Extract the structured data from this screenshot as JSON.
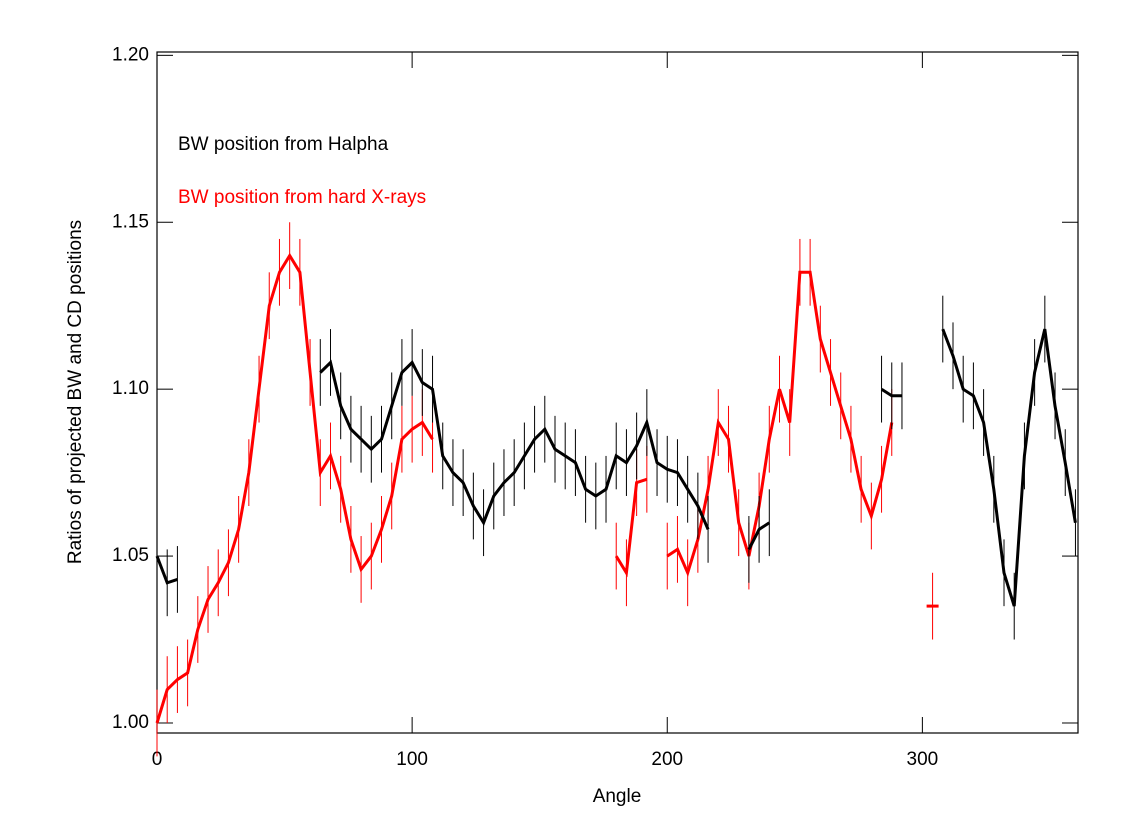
{
  "chart_data": {
    "type": "errorbar-line",
    "x_label": "Angle",
    "y_label": "Ratios of projected BW and CD positions",
    "xlim": [
      0,
      361
    ],
    "ylim": [
      0.997,
      1.201
    ],
    "xticks": [
      0,
      100,
      200,
      300
    ],
    "yticks": [
      {
        "value": 1.0,
        "label": "1.00"
      },
      {
        "value": 1.05,
        "label": "1.05"
      },
      {
        "value": 1.1,
        "label": "1.10"
      },
      {
        "value": 1.15,
        "label": "1.15"
      },
      {
        "value": 1.2,
        "label": "1.20"
      }
    ],
    "x": [
      0,
      4,
      8,
      12,
      16,
      20,
      24,
      28,
      32,
      36,
      40,
      44,
      48,
      52,
      56,
      60,
      64,
      68,
      72,
      76,
      80,
      84,
      88,
      92,
      96,
      100,
      104,
      108,
      112,
      116,
      120,
      124,
      128,
      132,
      136,
      140,
      144,
      148,
      152,
      156,
      160,
      164,
      168,
      172,
      176,
      180,
      184,
      188,
      192,
      196,
      200,
      204,
      208,
      212,
      216,
      220,
      224,
      228,
      232,
      236,
      240,
      244,
      248,
      252,
      256,
      260,
      264,
      268,
      272,
      276,
      280,
      284,
      288,
      292,
      296,
      300,
      304,
      308,
      312,
      316,
      320,
      324,
      328,
      332,
      336,
      340,
      344,
      348,
      352,
      356,
      360
    ],
    "series": [
      {
        "name": "BW position from Halpha",
        "color": "#000000",
        "error": 0.01,
        "values": [
          1.05,
          1.042,
          1.043,
          null,
          null,
          null,
          null,
          null,
          null,
          null,
          null,
          null,
          null,
          null,
          null,
          null,
          1.105,
          1.108,
          1.095,
          1.088,
          1.085,
          1.082,
          1.085,
          1.095,
          1.105,
          1.108,
          1.102,
          1.1,
          1.08,
          1.075,
          1.072,
          1.065,
          1.06,
          1.068,
          1.072,
          1.075,
          1.08,
          1.085,
          1.088,
          1.082,
          1.08,
          1.078,
          1.07,
          1.068,
          1.07,
          1.08,
          1.078,
          1.083,
          1.09,
          1.078,
          1.076,
          1.075,
          1.07,
          1.065,
          1.058,
          null,
          null,
          null,
          1.052,
          1.058,
          1.06,
          null,
          null,
          null,
          null,
          null,
          null,
          null,
          null,
          null,
          null,
          1.1,
          1.098,
          1.098,
          null,
          null,
          null,
          1.118,
          1.11,
          1.1,
          1.098,
          1.09,
          1.07,
          1.045,
          1.035,
          1.08,
          1.105,
          1.118,
          1.095,
          1.078,
          1.06
        ]
      },
      {
        "name": "BW position from hard X-rays",
        "color": "#ff0000",
        "error": 0.01,
        "values": [
          1.0,
          1.01,
          1.013,
          1.015,
          1.028,
          1.037,
          1.042,
          1.048,
          1.058,
          1.075,
          1.1,
          1.125,
          1.135,
          1.14,
          1.135,
          1.105,
          1.075,
          1.08,
          1.07,
          1.055,
          1.046,
          1.05,
          1.058,
          1.068,
          1.085,
          1.088,
          1.09,
          1.085,
          null,
          null,
          null,
          null,
          null,
          null,
          null,
          null,
          null,
          null,
          null,
          null,
          null,
          null,
          null,
          null,
          null,
          1.05,
          1.045,
          1.072,
          1.073,
          null,
          1.05,
          1.052,
          1.045,
          1.055,
          1.07,
          1.09,
          1.085,
          1.06,
          1.05,
          1.065,
          1.085,
          1.1,
          1.09,
          1.135,
          1.135,
          1.115,
          1.105,
          1.095,
          1.085,
          1.07,
          1.062,
          1.073,
          1.09,
          null,
          null,
          null,
          1.035,
          null,
          null,
          null,
          null,
          null,
          null,
          null,
          null,
          null,
          null,
          null,
          null,
          null,
          null
        ]
      }
    ]
  }
}
